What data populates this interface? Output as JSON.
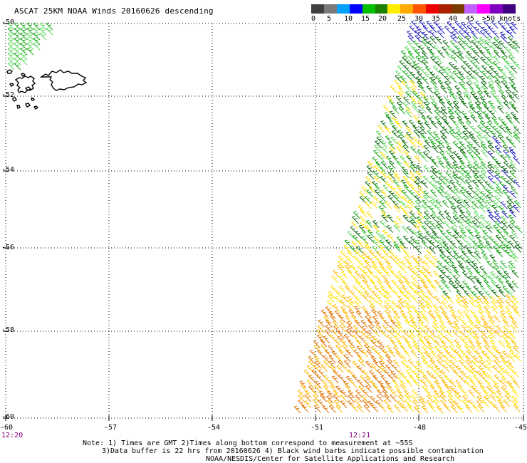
{
  "title": "ASCAT 25KM NOAA Winds 20160626 descending",
  "colorbar": {
    "colors": [
      "#404040",
      "#7a7a7a",
      "#00a0ff",
      "#0000ff",
      "#00c000",
      "#1a8000",
      "#ffee00",
      "#ffaa00",
      "#ff5500",
      "#ee0000",
      "#aa2000",
      "#7a3a00",
      "#c060ff",
      "#ff00ff",
      "#8000c0",
      "#400080"
    ],
    "labels": [
      "0",
      "5",
      "10",
      "15",
      "20",
      "25",
      "30",
      "35",
      "40",
      "45",
      ">50 knots"
    ]
  },
  "axes": {
    "y_labels": [
      "-50",
      "-52",
      "-54",
      "-56",
      "-58",
      "-60"
    ],
    "x_labels": [
      "-60",
      "-57",
      "-54",
      "-51",
      "-48",
      "-45"
    ],
    "time_labels": [
      "12:20",
      "12:21"
    ]
  },
  "map_style": {
    "land_color": "#000000",
    "grid_color": "#000000",
    "wind_colors": {
      "dark_green": "#0a6a0a",
      "green": "#1aaa1a",
      "light_green": "#5ad85a",
      "yellow": "#ffe000",
      "orange_yellow": "#ffb800",
      "orange": "#e07000",
      "blue": "#2020c0"
    }
  },
  "notes": [
    "Note: 1) Times are GMT 2)Times along bottom correspond to measurement at ~55S",
    "3)Data buffer is 22 hrs from 20160626 4) Black wind barbs indicate possible contamination",
    "NOAA/NESDIS/Center for Satellite Applications and Research"
  ]
}
